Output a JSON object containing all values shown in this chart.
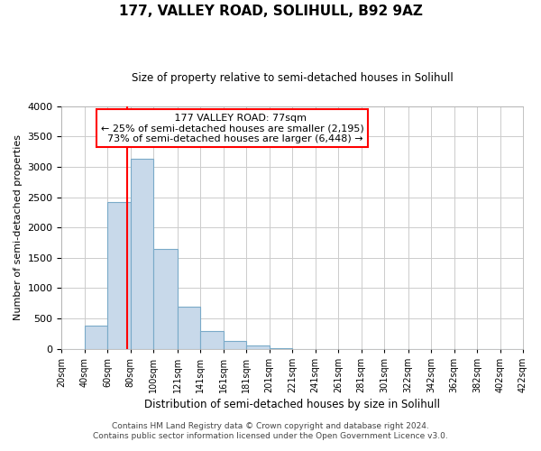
{
  "title": "177, VALLEY ROAD, SOLIHULL, B92 9AZ",
  "subtitle": "Size of property relative to semi-detached houses in Solihull",
  "xlabel": "Distribution of semi-detached houses by size in Solihull",
  "ylabel": "Number of semi-detached properties",
  "footer_line1": "Contains HM Land Registry data © Crown copyright and database right 2024.",
  "footer_line2": "Contains public sector information licensed under the Open Government Licence v3.0.",
  "annotation_title": "177 VALLEY ROAD: 77sqm",
  "annotation_line1": "← 25% of semi-detached houses are smaller (2,195)",
  "annotation_line2": "73% of semi-detached houses are larger (6,448) →",
  "property_size": 77,
  "bar_edges": [
    20,
    40,
    60,
    80,
    100,
    121,
    141,
    161,
    181,
    201,
    221,
    241,
    261,
    281,
    301,
    322,
    342,
    362,
    382,
    402,
    422
  ],
  "bar_heights": [
    0,
    380,
    2420,
    3130,
    1640,
    700,
    290,
    130,
    50,
    10,
    0,
    0,
    0,
    0,
    0,
    0,
    0,
    0,
    0,
    0
  ],
  "bar_color": "#c8d9ea",
  "bar_edgecolor": "#7aaac8",
  "vline_color": "red",
  "ylim": [
    0,
    4000
  ],
  "background_color": "#ffffff",
  "grid_color": "#cccccc",
  "annotation_box_edgecolor": "red",
  "yticks": [
    0,
    500,
    1000,
    1500,
    2000,
    2500,
    3000,
    3500,
    4000
  ]
}
